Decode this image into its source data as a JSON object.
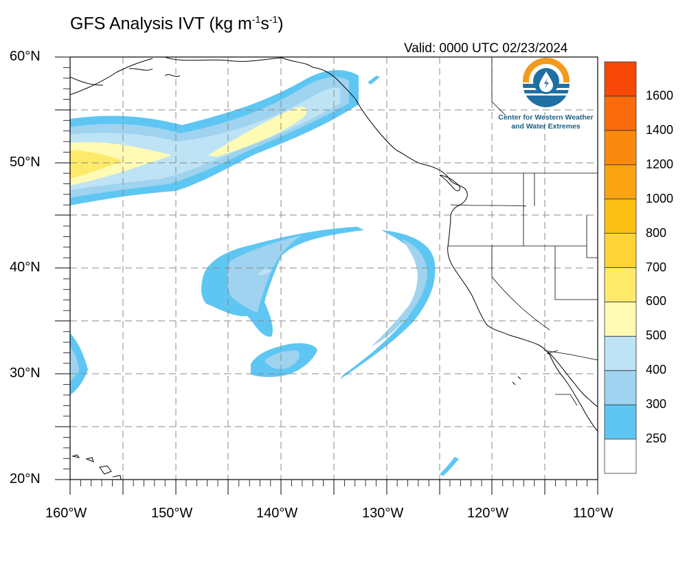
{
  "title": {
    "prefix": "GFS Analysis IVT (kg m",
    "exp1": "-1",
    "mid": "s",
    "exp2": "-1",
    "suffix": ")"
  },
  "valid_label": "Valid: 0000 UTC 02/23/2024",
  "logo": {
    "icon": "water-drop-sun-logo-icon",
    "line1": "Center for Western Weather",
    "line2": "and Water Extremes",
    "colors": {
      "orange": "#f39a1e",
      "blue": "#1f6fa2",
      "teal": "#2aa3c8"
    }
  },
  "map": {
    "lon_range": [
      -160,
      -110
    ],
    "lat_range": [
      20,
      60
    ],
    "grid": "dashed gray, every 5 degrees",
    "lat_labels": [
      "60°N",
      "50°N",
      "40°N",
      "30°N",
      "20°N"
    ],
    "lon_labels": [
      "160°W",
      "150°W",
      "140°W",
      "130°W",
      "120°W",
      "110°W"
    ]
  },
  "colorbar": {
    "levels": [
      {
        "label": "250",
        "color": "#ffffff"
      },
      {
        "label": "300",
        "color": "#5ec6f2"
      },
      {
        "label": "400",
        "color": "#9fd3ef"
      },
      {
        "label": "500",
        "color": "#bde3f5"
      },
      {
        "label": "600",
        "color": "#fffbb4"
      },
      {
        "label": "700",
        "color": "#fdea6b"
      },
      {
        "label": "800",
        "color": "#fcd436"
      },
      {
        "label": "1000",
        "color": "#fcc015"
      },
      {
        "label": "1200",
        "color": "#fba313"
      },
      {
        "label": "1400",
        "color": "#fa8a0f"
      },
      {
        "label": "1600",
        "color": "#f96b0c"
      },
      {
        "label": "",
        "color": "#f74807"
      }
    ]
  }
}
